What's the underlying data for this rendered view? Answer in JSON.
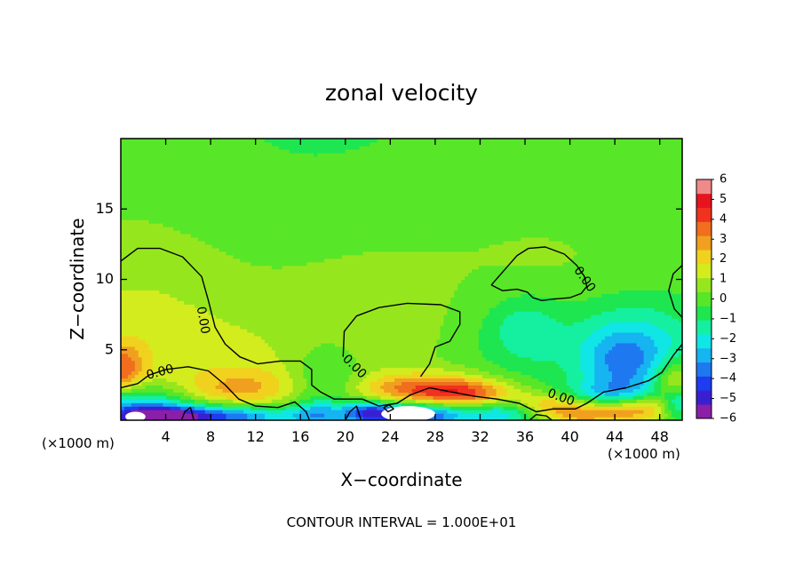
{
  "chart_data": {
    "type": "heatmap",
    "title": "zonal velocity",
    "xlabel": "X−coordinate",
    "ylabel": "Z−coordinate",
    "x_unit_left": "(×1000 m)",
    "x_unit_right": "(×1000 m)",
    "footer": "CONTOUR INTERVAL = 1.000E+01",
    "xlim": [
      0,
      50
    ],
    "ylim": [
      0,
      20
    ],
    "x_ticks": [
      4,
      8,
      12,
      16,
      20,
      24,
      28,
      32,
      36,
      40,
      44,
      48
    ],
    "y_ticks": [
      5,
      10,
      15
    ],
    "colorbar": {
      "ticks": [
        "6",
        "5",
        "4",
        "3",
        "2",
        "1",
        "0",
        "−1",
        "−2",
        "−3",
        "−4",
        "−5",
        "−6"
      ],
      "range": [
        -6,
        6
      ],
      "colors": [
        "#8B1FA8",
        "#3A1FD0",
        "#1E3CF0",
        "#1E78F0",
        "#16B4F0",
        "#10E6E6",
        "#14F0A0",
        "#1EE650",
        "#58E628",
        "#96E61E",
        "#D2EC1E",
        "#F0D21E",
        "#F0A01E",
        "#F06E1E",
        "#F0321E",
        "#E6141E",
        "#F08A8A"
      ]
    },
    "contour_label": "0.00",
    "contour_labels": [
      {
        "text": "0.00",
        "x": 3.5,
        "z": 3.4,
        "rot": -15
      },
      {
        "text": "0.00",
        "x": 7.3,
        "z": 7.1,
        "rot": 80
      },
      {
        "text": "0.00",
        "x": 20.8,
        "z": 3.8,
        "rot": 45
      },
      {
        "text": "0.00",
        "x": 39.2,
        "z": 1.6,
        "rot": 20
      },
      {
        "text": "0.00",
        "x": 41.3,
        "z": 10.0,
        "rot": 55
      }
    ],
    "contours": [
      [
        [
          0,
          11.3
        ],
        [
          1.5,
          12.2
        ],
        [
          3.5,
          12.2
        ],
        [
          5.5,
          11.6
        ],
        [
          7.2,
          10.2
        ],
        [
          7.8,
          8.5
        ],
        [
          8.4,
          6.6
        ],
        [
          9.3,
          5.4
        ],
        [
          10.6,
          4.5
        ],
        [
          12.2,
          4
        ],
        [
          14.2,
          4.2
        ],
        [
          16,
          4.2
        ],
        [
          17,
          3.6
        ],
        [
          17,
          2.5
        ],
        [
          17.8,
          2
        ],
        [
          19,
          1.5
        ],
        [
          20.2,
          1.5
        ],
        [
          21.5,
          1.5
        ]
      ],
      [
        [
          0,
          2.3
        ],
        [
          1.5,
          2.6
        ],
        [
          2.5,
          3.2
        ],
        [
          4,
          3.6
        ],
        [
          6,
          3.8
        ],
        [
          7.8,
          3.5
        ],
        [
          9.3,
          2.5
        ],
        [
          10.5,
          1.5
        ],
        [
          12,
          1
        ],
        [
          14,
          0.9
        ],
        [
          15.5,
          1.3
        ],
        [
          16.5,
          0.6
        ],
        [
          16.8,
          0
        ]
      ],
      [
        [
          21.5,
          1.5
        ],
        [
          23,
          1
        ],
        [
          24.6,
          1.2
        ],
        [
          25.8,
          1.8
        ],
        [
          27.5,
          2.3
        ],
        [
          29.5,
          2
        ],
        [
          31.5,
          1.7
        ],
        [
          33.5,
          1.5
        ],
        [
          35.5,
          1.2
        ],
        [
          37,
          0.6
        ],
        [
          38.5,
          0.8
        ],
        [
          40.5,
          0.8
        ],
        [
          41.5,
          1.2
        ],
        [
          43,
          2
        ],
        [
          45,
          2.3
        ],
        [
          47,
          2.8
        ],
        [
          48.2,
          3.4
        ],
        [
          49.2,
          4.6
        ],
        [
          50,
          5.4
        ]
      ],
      [
        [
          19.8,
          4.5
        ],
        [
          19.9,
          6.3
        ],
        [
          21,
          7.4
        ],
        [
          23,
          8
        ],
        [
          25.5,
          8.3
        ],
        [
          28.5,
          8.2
        ],
        [
          30.2,
          7.7
        ],
        [
          30.2,
          6.8
        ],
        [
          29.3,
          5.6
        ],
        [
          28,
          5.2
        ],
        [
          27.5,
          4
        ],
        [
          26.7,
          3.1
        ]
      ],
      [
        [
          33,
          9.6
        ],
        [
          34.2,
          10.7
        ],
        [
          35.3,
          11.7
        ],
        [
          36.3,
          12.2
        ],
        [
          37.8,
          12.3
        ],
        [
          39.5,
          11.8
        ],
        [
          40.6,
          11
        ],
        [
          41.3,
          10.2
        ],
        [
          41.5,
          9.5
        ],
        [
          41,
          9
        ],
        [
          40,
          8.7
        ],
        [
          38.5,
          8.6
        ],
        [
          37.5,
          8.5
        ],
        [
          36.7,
          8.7
        ],
        [
          36.2,
          9.1
        ],
        [
          35.3,
          9.3
        ],
        [
          34,
          9.2
        ],
        [
          33,
          9.6
        ]
      ],
      [
        [
          50,
          11
        ],
        [
          49.2,
          10.4
        ],
        [
          48.8,
          9.2
        ],
        [
          49.3,
          7.9
        ],
        [
          50,
          7.3
        ]
      ],
      [
        [
          5.4,
          0
        ],
        [
          5.7,
          0.6
        ],
        [
          6.2,
          0.9
        ],
        [
          6.5,
          0
        ]
      ],
      [
        [
          20,
          0
        ],
        [
          20.4,
          0.6
        ],
        [
          21,
          1
        ],
        [
          21.4,
          0
        ]
      ],
      [
        [
          23.4,
          0.9
        ],
        [
          23.9,
          1.1
        ],
        [
          24.3,
          0.8
        ],
        [
          23.8,
          0.6
        ],
        [
          23.4,
          0.9
        ]
      ],
      [
        [
          36.4,
          0
        ],
        [
          37,
          0.4
        ],
        [
          37.9,
          0.3
        ],
        [
          38.4,
          0
        ]
      ]
    ],
    "features": [
      {
        "x": 0,
        "z": 20,
        "w": 52,
        "h": 18,
        "v": 0.15
      },
      {
        "x": 18,
        "z": 21,
        "w": 22,
        "h": 9,
        "v": -0.55
      },
      {
        "x": 1,
        "z": 7.5,
        "w": 10,
        "h": 7,
        "v": 1.0
      },
      {
        "x": 7,
        "z": 3.5,
        "w": 10,
        "h": 4,
        "v": 0.9
      },
      {
        "x": 22,
        "z": 6.5,
        "w": 9,
        "h": 5,
        "v": 0.9
      },
      {
        "x": 38,
        "z": 10.8,
        "w": 8,
        "h": 3.5,
        "v": 0.45
      },
      {
        "x": 30,
        "z": 12.5,
        "w": 12,
        "h": 6,
        "v": 0.25
      },
      {
        "x": 35.5,
        "z": 6,
        "w": 8,
        "h": 5,
        "v": -0.7
      },
      {
        "x": 36,
        "z": 6.5,
        "w": 3,
        "h": 2.2,
        "v": -1.2
      },
      {
        "x": 46.5,
        "z": 5,
        "w": 6,
        "h": 3.5,
        "v": -2.0
      },
      {
        "x": 44.5,
        "z": 4,
        "w": 3.5,
        "h": 2.6,
        "v": -1.8
      },
      {
        "x": 18.5,
        "z": 3.2,
        "w": 3.2,
        "h": 2.8,
        "v": -1.3
      },
      {
        "x": 0.5,
        "z": 0.9,
        "w": 6,
        "h": 1.6,
        "v": -3.5
      },
      {
        "x": 3.5,
        "z": 0.2,
        "w": 4,
        "h": 0.8,
        "v": -4.8
      },
      {
        "x": 10,
        "z": 0.3,
        "w": 6,
        "h": 0.8,
        "v": -4.0
      },
      {
        "x": 0.2,
        "z": 3.6,
        "w": 1.8,
        "h": 1.8,
        "v": 2.6
      },
      {
        "x": 12.5,
        "z": 2.3,
        "w": 3.2,
        "h": 1.5,
        "v": 1.4
      },
      {
        "x": 8.5,
        "z": 2.2,
        "w": 3,
        "h": 1.2,
        "v": 1.2
      },
      {
        "x": 17.5,
        "z": 0.5,
        "w": 2.5,
        "h": 0.9,
        "v": -2.3
      },
      {
        "x": 22,
        "z": 0.6,
        "w": 2.2,
        "h": 0.8,
        "v": -3.0
      },
      {
        "x": 26,
        "z": 0.4,
        "w": 4.5,
        "h": 0.9,
        "v": -5.0
      },
      {
        "x": 27.5,
        "z": 2.2,
        "w": 6,
        "h": 1.2,
        "v": 3.6
      },
      {
        "x": 31.5,
        "z": 1.8,
        "w": 4,
        "h": 0.9,
        "v": 2.2
      },
      {
        "x": 34.5,
        "z": 0.6,
        "w": 4,
        "h": 1.0,
        "v": -2.4
      },
      {
        "x": 37.5,
        "z": 1.2,
        "w": 3,
        "h": 0.8,
        "v": 2.0
      },
      {
        "x": 40.5,
        "z": 0.5,
        "w": 4,
        "h": 0.9,
        "v": 3.0
      },
      {
        "x": 46,
        "z": 0.8,
        "w": 4,
        "h": 1.0,
        "v": 3.2
      },
      {
        "x": 49.3,
        "z": 2.7,
        "w": 1.8,
        "h": 1.6,
        "v": 2.6
      },
      {
        "x": 43.5,
        "z": 1.8,
        "w": 3.5,
        "h": 1.0,
        "v": -1.8
      },
      {
        "x": 49.5,
        "z": 1.2,
        "w": 1.5,
        "h": 1.2,
        "v": -3.0
      }
    ],
    "white_patches": [
      {
        "x": 1.3,
        "z": 0.25,
        "w": 0.9,
        "h": 0.35
      },
      {
        "x": 25.6,
        "z": 0.45,
        "w": 2.4,
        "h": 0.55
      }
    ]
  }
}
